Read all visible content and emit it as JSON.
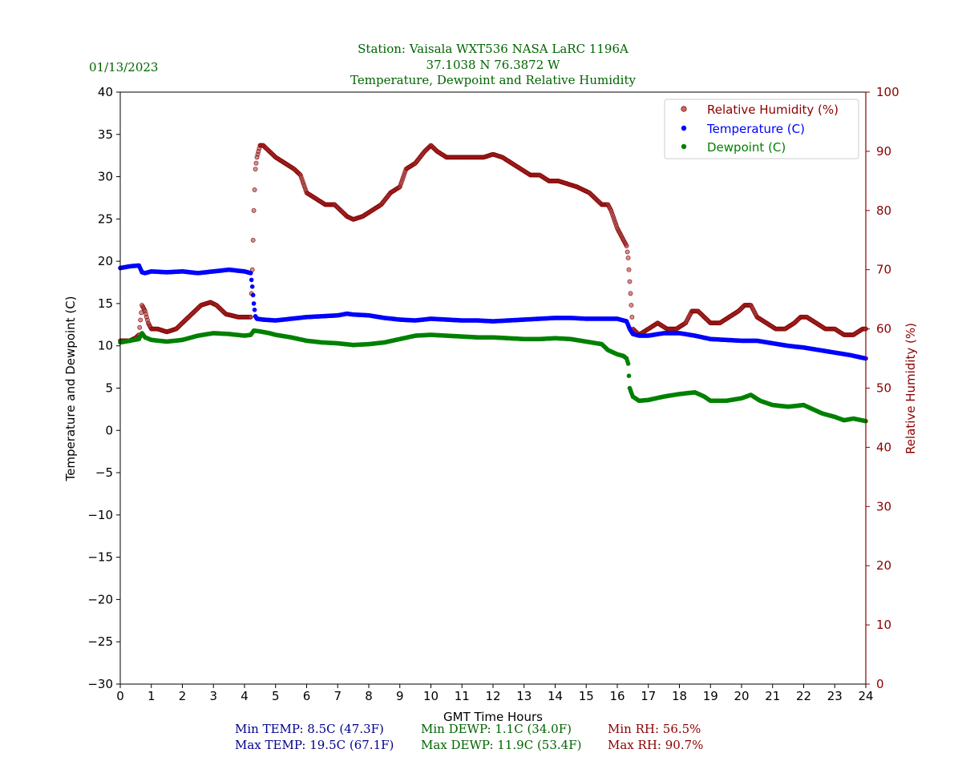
{
  "chart_data": {
    "type": "scatter",
    "date": "01/13/2023",
    "title_lines": [
      "Station:  Vaisala WXT536  NASA LaRC 1196A",
      "37.1038 N 76.3872 W",
      "Temperature, Dewpoint and Relative Humidity"
    ],
    "xlabel": "GMT Time Hours",
    "ylabel_left": "Temperature and Dewpoint (C)",
    "ylabel_right": "Relative Humidity (%)",
    "xlim": [
      0,
      24
    ],
    "ylim_left": [
      -30,
      40
    ],
    "ylim_right": [
      0,
      100
    ],
    "x_ticks": [
      "0",
      "1",
      "2",
      "3",
      "4",
      "5",
      "6",
      "7",
      "8",
      "9",
      "10",
      "11",
      "12",
      "13",
      "14",
      "15",
      "16",
      "17",
      "18",
      "19",
      "20",
      "21",
      "22",
      "23",
      "24"
    ],
    "y_ticks_left": [
      "40",
      "35",
      "30",
      "25",
      "20",
      "15",
      "10",
      "5",
      "0",
      "−10",
      "−15",
      "−20",
      "−25",
      "−30"
    ],
    "y_ticks_left_values": [
      40,
      35,
      30,
      25,
      20,
      15,
      10,
      5,
      0,
      -10,
      -15,
      -20,
      -25,
      -30
    ],
    "y_ticks_left_extra": {
      "label": "−5",
      "value": -5
    },
    "y_ticks_right": [
      "100",
      "90",
      "80",
      "70",
      "60",
      "50",
      "40",
      "30",
      "20",
      "10",
      "0"
    ],
    "y_ticks_right_values": [
      100,
      90,
      80,
      70,
      60,
      50,
      40,
      30,
      20,
      10,
      0
    ],
    "legend_position": "top-right",
    "series": [
      {
        "name": "Relative Humidity (%)",
        "axis": "right",
        "color": "#8b0000",
        "x": [
          0,
          0.3,
          0.5,
          0.6,
          0.7,
          0.8,
          0.9,
          1.0,
          1.2,
          1.5,
          1.8,
          2.0,
          2.3,
          2.6,
          2.9,
          3.1,
          3.4,
          3.8,
          4.1,
          4.2,
          4.25,
          4.3,
          4.35,
          4.4,
          4.5,
          4.6,
          4.8,
          5.0,
          5.3,
          5.6,
          5.8,
          6.0,
          6.3,
          6.6,
          6.9,
          7.1,
          7.3,
          7.5,
          7.8,
          8.1,
          8.4,
          8.7,
          9.0,
          9.2,
          9.5,
          9.8,
          10.0,
          10.2,
          10.5,
          10.8,
          11.1,
          11.4,
          11.7,
          12.0,
          12.3,
          12.6,
          12.9,
          13.2,
          13.5,
          13.8,
          14.1,
          14.4,
          14.7,
          14.9,
          15.1,
          15.3,
          15.5,
          15.7,
          15.8,
          16.0,
          16.2,
          16.3,
          16.35,
          16.5,
          16.7,
          17.0,
          17.3,
          17.6,
          17.9,
          18.2,
          18.4,
          18.6,
          18.8,
          19.0,
          19.3,
          19.6,
          19.9,
          20.1,
          20.3,
          20.5,
          20.8,
          21.1,
          21.4,
          21.7,
          21.9,
          22.1,
          22.4,
          22.7,
          23.0,
          23.3,
          23.6,
          23.9,
          24.0
        ],
        "values": [
          58,
          58,
          58.5,
          59,
          64,
          63,
          61,
          60,
          60,
          59.5,
          60,
          61,
          62.5,
          64,
          64.5,
          64,
          62.5,
          62,
          62,
          62,
          70,
          80,
          87,
          89,
          91,
          91,
          90,
          89,
          88,
          87,
          86,
          83,
          82,
          81,
          81,
          80,
          79,
          78.5,
          79,
          80,
          81,
          83,
          84,
          87,
          88,
          90,
          91,
          90,
          89,
          89,
          89,
          89,
          89,
          89.5,
          89,
          88,
          87,
          86,
          86,
          85,
          85,
          84.5,
          84,
          83.5,
          83,
          82,
          81,
          81,
          80,
          77,
          75,
          74,
          72,
          60,
          59,
          60,
          61,
          60,
          60,
          61,
          63,
          63,
          62,
          61,
          61,
          62,
          63,
          64,
          64,
          62,
          61,
          60,
          60,
          61,
          62,
          62,
          61,
          60,
          60,
          59,
          59,
          60,
          60
        ],
        "stat_min": "Min RH: 56.5%",
        "stat_max": "Max RH: 90.7%"
      },
      {
        "name": "Temperature (C)",
        "axis": "left",
        "color": "#0000ff",
        "x": [
          0,
          0.3,
          0.6,
          0.7,
          0.8,
          1.0,
          1.5,
          2.0,
          2.5,
          3.0,
          3.5,
          4.0,
          4.2,
          4.25,
          4.3,
          4.35,
          4.4,
          4.6,
          5.0,
          5.5,
          6.0,
          6.5,
          7.0,
          7.3,
          7.5,
          8.0,
          8.5,
          9.0,
          9.5,
          10.0,
          10.5,
          11.0,
          11.5,
          12.0,
          12.5,
          13.0,
          13.5,
          14.0,
          14.5,
          15.0,
          15.5,
          16.0,
          16.3,
          16.4,
          16.5,
          16.7,
          17.0,
          17.5,
          18.0,
          18.5,
          19.0,
          19.5,
          20.0,
          20.5,
          21.0,
          21.5,
          22.0,
          22.5,
          23.0,
          23.5,
          24.0
        ],
        "values": [
          19.2,
          19.4,
          19.5,
          18.7,
          18.6,
          18.8,
          18.7,
          18.8,
          18.6,
          18.8,
          19.0,
          18.8,
          18.6,
          17.0,
          15.0,
          13.5,
          13.2,
          13.1,
          13.0,
          13.2,
          13.4,
          13.5,
          13.6,
          13.8,
          13.7,
          13.6,
          13.3,
          13.1,
          13.0,
          13.2,
          13.1,
          13.0,
          13.0,
          12.9,
          13.0,
          13.1,
          13.2,
          13.3,
          13.3,
          13.2,
          13.2,
          13.2,
          12.9,
          12.0,
          11.4,
          11.2,
          11.2,
          11.5,
          11.5,
          11.2,
          10.8,
          10.7,
          10.6,
          10.6,
          10.3,
          10.0,
          9.8,
          9.5,
          9.2,
          8.9,
          8.5
        ],
        "stat_min": "Min TEMP: 8.5C (47.3F)",
        "stat_max": "Max TEMP: 19.5C (67.1F)"
      },
      {
        "name": "Dewpoint (C)",
        "axis": "left",
        "color": "#008000",
        "x": [
          0,
          0.3,
          0.6,
          0.7,
          0.8,
          1.0,
          1.5,
          2.0,
          2.5,
          3.0,
          3.5,
          4.0,
          4.2,
          4.3,
          4.5,
          4.8,
          5.0,
          5.5,
          6.0,
          6.5,
          7.0,
          7.5,
          8.0,
          8.5,
          9.0,
          9.5,
          10.0,
          10.5,
          11.0,
          11.5,
          12.0,
          12.5,
          13.0,
          13.5,
          14.0,
          14.5,
          15.0,
          15.5,
          15.7,
          16.0,
          16.2,
          16.3,
          16.35,
          16.4,
          16.5,
          16.7,
          17.0,
          17.5,
          18.0,
          18.5,
          18.8,
          19.0,
          19.5,
          20.0,
          20.3,
          20.6,
          21.0,
          21.5,
          22.0,
          22.3,
          22.6,
          23.0,
          23.3,
          23.6,
          24.0
        ],
        "values": [
          10.4,
          10.6,
          10.8,
          11.5,
          11.0,
          10.7,
          10.5,
          10.7,
          11.2,
          11.5,
          11.4,
          11.2,
          11.3,
          11.8,
          11.7,
          11.5,
          11.3,
          11.0,
          10.6,
          10.4,
          10.3,
          10.1,
          10.2,
          10.4,
          10.8,
          11.2,
          11.3,
          11.2,
          11.1,
          11.0,
          11.0,
          10.9,
          10.8,
          10.8,
          10.9,
          10.8,
          10.5,
          10.2,
          9.5,
          9.0,
          8.8,
          8.5,
          7.9,
          5.0,
          4.0,
          3.5,
          3.6,
          4.0,
          4.3,
          4.5,
          4.0,
          3.5,
          3.5,
          3.8,
          4.2,
          3.5,
          3.0,
          2.8,
          3.0,
          2.5,
          2.0,
          1.6,
          1.2,
          1.4,
          1.1
        ],
        "stat_min": "Min DEWP: 1.1C (34.0F)",
        "stat_max": "Max DEWP: 11.9C (53.4F)"
      }
    ]
  }
}
